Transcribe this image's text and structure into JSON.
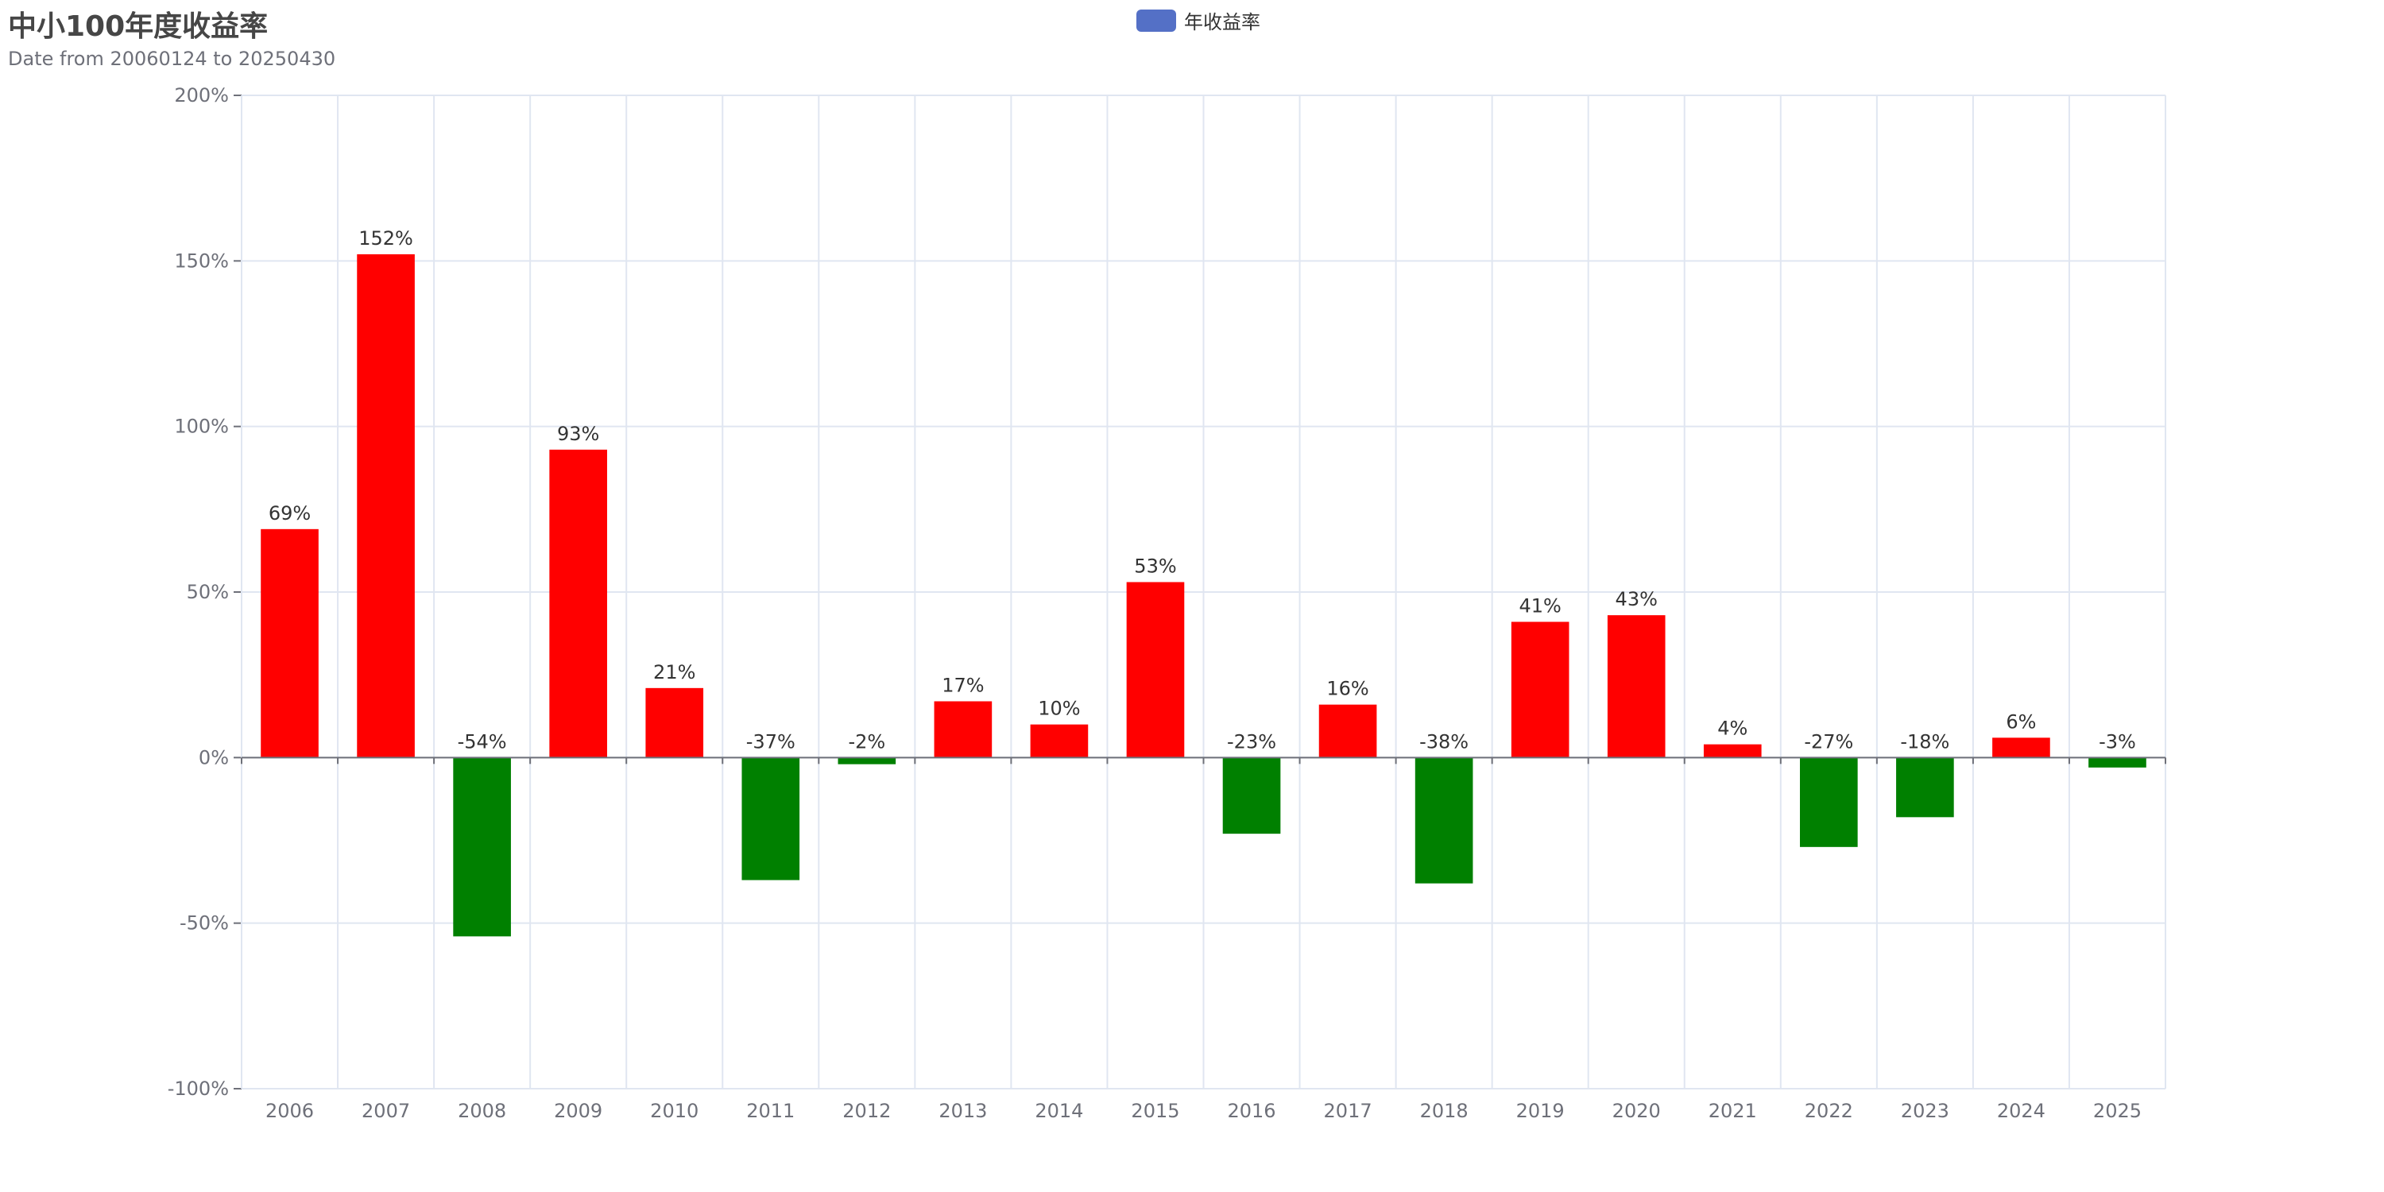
{
  "title": "中小100年度收益率",
  "subtitle": "Date from 20060124 to 20250430",
  "legend": {
    "label": "年收益率",
    "color": "#5470c6"
  },
  "colors": {
    "positive": "#ff0000",
    "negative": "#008000",
    "grid": "#e0e6f1",
    "axis": "#6e7079",
    "label": "#333333"
  },
  "chart_data": {
    "type": "bar",
    "title": "中小100年度收益率",
    "subtitle": "Date from 20060124 to 20250430",
    "categories": [
      "2006",
      "2007",
      "2008",
      "2009",
      "2010",
      "2011",
      "2012",
      "2013",
      "2014",
      "2015",
      "2016",
      "2017",
      "2018",
      "2019",
      "2020",
      "2021",
      "2022",
      "2023",
      "2024",
      "2025"
    ],
    "series": [
      {
        "name": "年收益率",
        "values": [
          69,
          152,
          -54,
          93,
          21,
          -37,
          -2,
          17,
          10,
          53,
          -23,
          16,
          -38,
          41,
          43,
          4,
          -27,
          -18,
          6,
          -3
        ]
      }
    ],
    "value_suffix": "%",
    "ylim": [
      -100,
      200
    ],
    "yticks": [
      -100,
      -50,
      0,
      50,
      100,
      150,
      200
    ],
    "grid": true,
    "legend_position": "top-center"
  }
}
